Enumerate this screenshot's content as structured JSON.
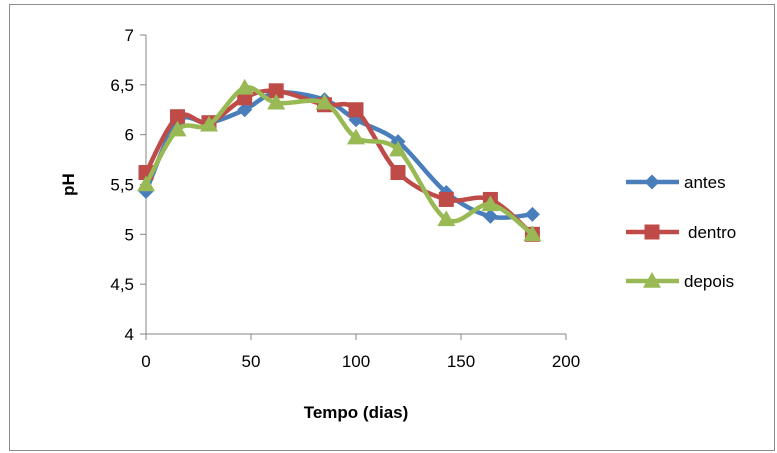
{
  "chart_data": {
    "type": "line",
    "xlabel": "Tempo (dias)",
    "ylabel": "pH",
    "xlim": [
      0,
      200
    ],
    "ylim": [
      4,
      7
    ],
    "xticks": [
      0,
      50,
      100,
      150,
      200
    ],
    "yticks": [
      4,
      4.5,
      5,
      5.5,
      6,
      6.5,
      7
    ],
    "xtick_labels": [
      "0",
      "50",
      "100",
      "150",
      "200"
    ],
    "ytick_labels": [
      "4",
      "4,5",
      "5",
      "5,5",
      "6",
      "6,5",
      "7"
    ],
    "grid": false,
    "legend_position": "right",
    "series": [
      {
        "name": "antes",
        "color": "#4a7ebb",
        "marker": "diamond",
        "x": [
          0,
          15,
          30,
          47,
          62,
          85,
          100,
          120,
          143,
          164,
          184
        ],
        "y": [
          5.43,
          6.13,
          6.12,
          6.25,
          6.42,
          6.35,
          6.15,
          5.93,
          5.42,
          5.18,
          5.2
        ]
      },
      {
        "name": "dentro",
        "color": "#be4b48",
        "marker": "square",
        "x": [
          0,
          15,
          30,
          47,
          62,
          85,
          100,
          120,
          143,
          164,
          184
        ],
        "y": [
          5.62,
          6.18,
          6.12,
          6.37,
          6.44,
          6.3,
          6.25,
          5.62,
          5.35,
          5.35,
          5.0
        ]
      },
      {
        "name": "depois",
        "color": "#98b954",
        "marker": "triangle",
        "x": [
          0,
          15,
          30,
          47,
          62,
          85,
          100,
          120,
          143,
          164,
          184
        ],
        "y": [
          5.5,
          6.05,
          6.1,
          6.47,
          6.32,
          6.32,
          5.97,
          5.85,
          5.15,
          5.3,
          5.0
        ]
      }
    ]
  }
}
